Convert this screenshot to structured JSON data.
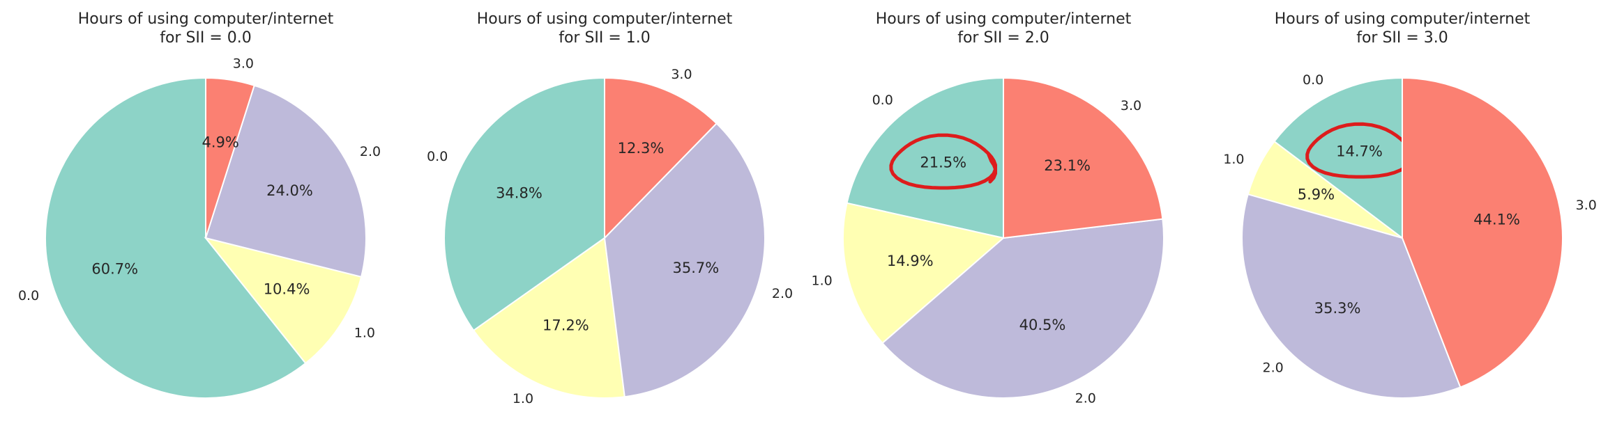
{
  "colors": {
    "0.0": "#8dd3c7",
    "1.0": "#ffffb3",
    "2.0": "#bebada",
    "3.0": "#fb8072",
    "annotation": "#dd1c1c"
  },
  "chart_data": [
    {
      "type": "pie",
      "title": "Hours of using computer/internet\nfor SII = 0.0",
      "labels": [
        "0.0",
        "1.0",
        "2.0",
        "3.0"
      ],
      "values": [
        60.7,
        10.4,
        24.0,
        4.9
      ],
      "value_labels": [
        "60.7%",
        "10.4%",
        "24.0%",
        "4.9%"
      ],
      "annotated_label": null
    },
    {
      "type": "pie",
      "title": "Hours of using computer/internet\nfor SII = 1.0",
      "labels": [
        "0.0",
        "1.0",
        "2.0",
        "3.0"
      ],
      "values": [
        34.8,
        17.2,
        35.7,
        12.3
      ],
      "value_labels": [
        "34.8%",
        "17.2%",
        "35.7%",
        "12.3%"
      ],
      "annotated_label": null
    },
    {
      "type": "pie",
      "title": "Hours of using computer/internet\nfor SII = 2.0",
      "labels": [
        "0.0",
        "1.0",
        "2.0",
        "3.0"
      ],
      "values": [
        21.5,
        14.9,
        40.5,
        23.1
      ],
      "value_labels": [
        "21.5%",
        "14.9%",
        "40.5%",
        "23.1%"
      ],
      "annotated_label": "0.0"
    },
    {
      "type": "pie",
      "title": "Hours of using computer/internet\nfor SII = 3.0",
      "labels": [
        "0.0",
        "1.0",
        "2.0",
        "3.0"
      ],
      "values": [
        14.7,
        5.9,
        35.3,
        44.1
      ],
      "value_labels": [
        "14.7%",
        "5.9%",
        "35.3%",
        "44.1%"
      ],
      "annotated_label": "0.0"
    }
  ]
}
